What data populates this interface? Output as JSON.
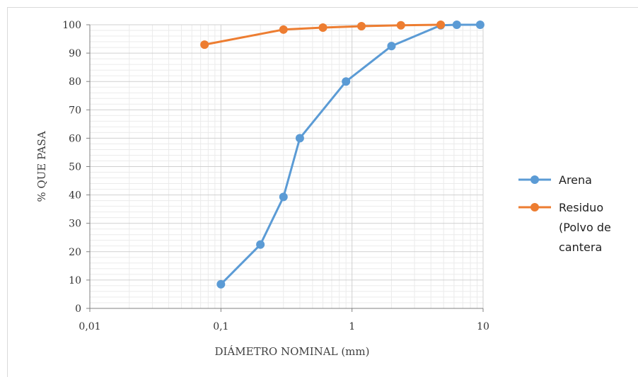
{
  "chart_data": {
    "type": "line",
    "title": "",
    "xlabel": "DIÁMETRO NOMINAL (mm)",
    "ylabel": "% QUE PASA",
    "x_scale": "log",
    "xlim": [
      0.01,
      10
    ],
    "ylim": [
      0,
      100
    ],
    "x_ticks": [
      0.01,
      0.1,
      1,
      10
    ],
    "x_tick_labels": [
      "0,01",
      "0,1",
      "1",
      "10"
    ],
    "y_ticks": [
      0,
      10,
      20,
      30,
      40,
      50,
      60,
      70,
      80,
      90,
      100
    ],
    "y_tick_labels": [
      "0",
      "10",
      "20",
      "30",
      "40",
      "50",
      "60",
      "70",
      "80",
      "90",
      "100"
    ],
    "grid": true,
    "legend_position": "right",
    "series": [
      {
        "name": "Arena",
        "color": "#5b9bd5",
        "x": [
          0.1,
          0.2,
          0.3,
          0.4,
          0.9,
          2.0,
          4.75,
          6.3,
          9.5
        ],
        "y": [
          8.5,
          22.5,
          39.3,
          60,
          80,
          92.5,
          99.8,
          100,
          100
        ]
      },
      {
        "name_lines": [
          "Residuo",
          "(Polvo de",
          "cantera"
        ],
        "color": "#ed7d31",
        "x": [
          0.075,
          0.3,
          0.6,
          1.18,
          2.36,
          4.75
        ],
        "y": [
          93,
          98.3,
          99,
          99.5,
          99.8,
          100
        ]
      }
    ]
  }
}
